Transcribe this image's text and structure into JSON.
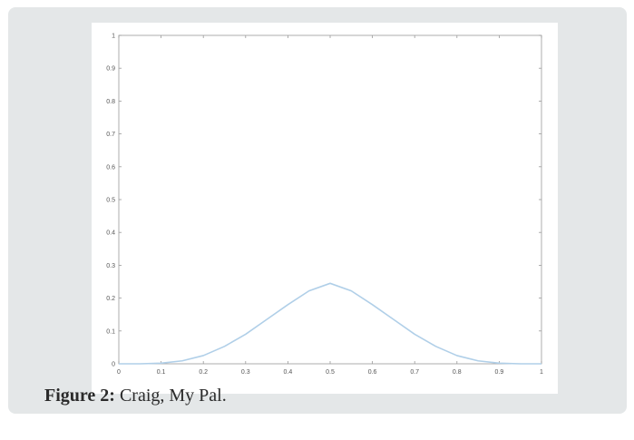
{
  "caption": {
    "label": "Figure 2:",
    "text": " Craig, My Pal."
  },
  "colors": {
    "background": "#e4e7e8",
    "plot_background": "#ffffff",
    "axes": "#999999",
    "line": "#b0cfe8"
  },
  "chart_data": {
    "type": "line",
    "title": "",
    "xlabel": "",
    "ylabel": "",
    "xlim": [
      0,
      1
    ],
    "ylim": [
      0,
      1
    ],
    "grid": false,
    "xticks": [
      "0",
      "0.1",
      "0.2",
      "0.3",
      "0.4",
      "0.5",
      "0.6",
      "0.7",
      "0.8",
      "0.9",
      "1"
    ],
    "yticks": [
      "0",
      "0.1",
      "0.2",
      "0.3",
      "0.4",
      "0.5",
      "0.6",
      "0.7",
      "0.8",
      "0.9",
      "1"
    ],
    "series": [
      {
        "x": [
          0,
          0.05,
          0.1,
          0.15,
          0.2,
          0.25,
          0.3,
          0.35,
          0.4,
          0.45,
          0.5,
          0.55,
          0.6,
          0.65,
          0.7,
          0.75,
          0.8,
          0.85,
          0.9,
          0.95,
          1
        ],
        "y": [
          0,
          0,
          0.002,
          0.009,
          0.025,
          0.053,
          0.09,
          0.135,
          0.18,
          0.222,
          0.245,
          0.222,
          0.18,
          0.135,
          0.09,
          0.053,
          0.025,
          0.009,
          0.002,
          0,
          0
        ]
      }
    ]
  }
}
